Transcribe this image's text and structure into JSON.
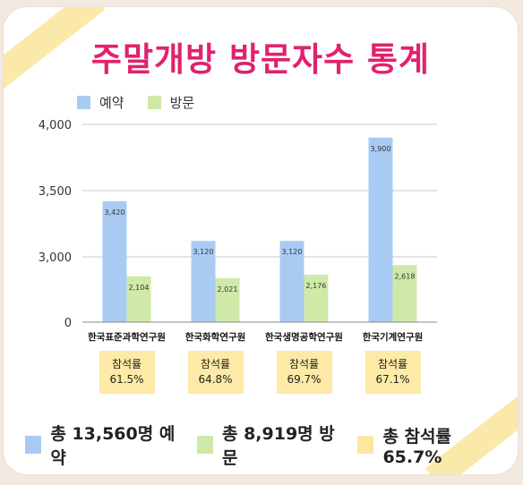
{
  "title": "주말개방 방문자수 통계",
  "legend": {
    "reserve": "예약",
    "visit": "방문"
  },
  "chart_data": {
    "type": "bar",
    "categories": [
      "한국표준과학연구원",
      "한국화학연구원",
      "한국생명공학연구원",
      "한국기계연구원"
    ],
    "series": [
      {
        "name": "예약",
        "values": [
          3420,
          3120,
          3120,
          3900
        ],
        "labels": [
          "3,420",
          "3,120",
          "3,120",
          "3,900"
        ]
      },
      {
        "name": "방문",
        "values": [
          2104,
          2021,
          2176,
          2618
        ],
        "labels": [
          "2,104",
          "2,021",
          "2,176",
          "2,618"
        ]
      }
    ],
    "y_ticks": [
      "4,000",
      "3,500",
      "3,000",
      "0"
    ],
    "y_axis": "broken scale: 0, then 3,000–4,000",
    "colors": {
      "예약": "#a9cbf3",
      "방문": "#cfe9a8"
    }
  },
  "rates": {
    "label": "참석률",
    "values": [
      "61.5%",
      "64.8%",
      "69.7%",
      "67.1%"
    ]
  },
  "summary": {
    "reserve": "총 13,560명 예약",
    "visit": "총 8,919명 방문",
    "rate": "총 참석률 65.7%"
  }
}
